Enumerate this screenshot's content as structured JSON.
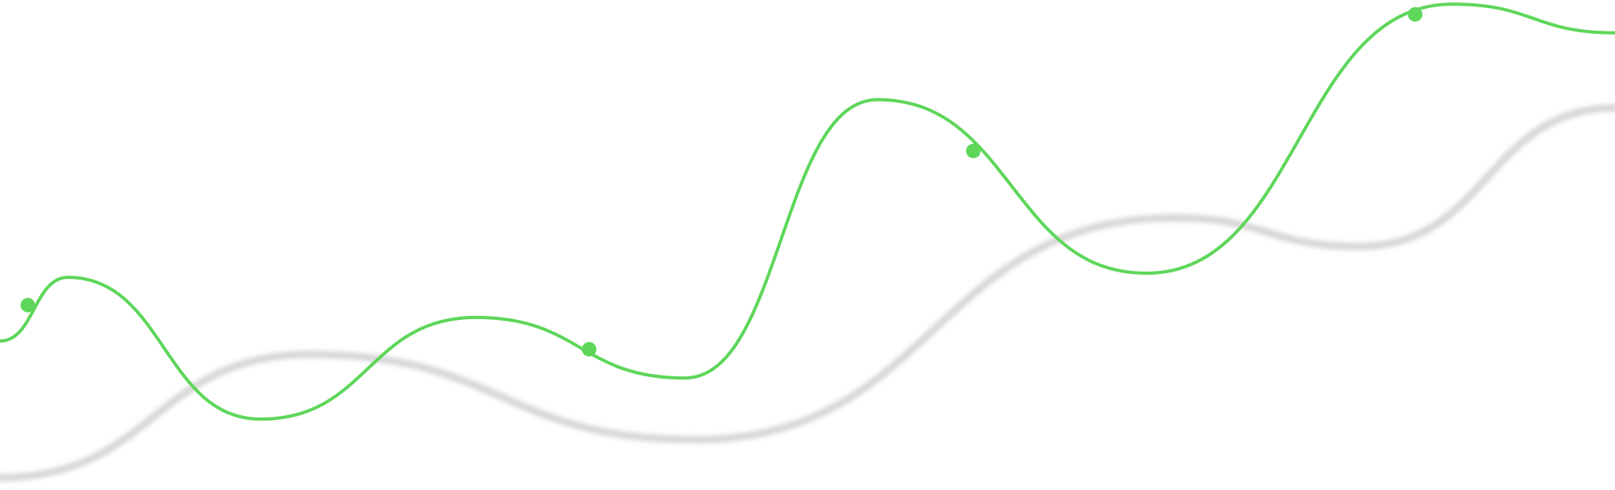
{
  "chart_data": {
    "type": "line",
    "xlim": [
      0,
      1568
    ],
    "ylim": [
      0,
      477
    ],
    "series": [
      {
        "color": "#d6d6d6",
        "shadow": true,
        "x": [
          0,
          300,
          675,
          1140,
          1320,
          1568
        ],
        "values": [
          12,
          132,
          49,
          265,
          237,
          372
        ]
      },
      {
        "color": "#5ed65a",
        "shadow": false,
        "x": [
          0,
          66,
          253,
          462,
          665,
          852,
          1113,
          1410,
          1568
        ],
        "values": [
          145,
          207,
          69,
          168,
          109,
          380,
          211,
          473,
          445
        ]
      }
    ],
    "markers": {
      "color": "#5ed65a",
      "x": [
        27,
        572,
        945,
        1374
      ],
      "values": [
        180,
        137,
        330,
        463
      ]
    }
  }
}
